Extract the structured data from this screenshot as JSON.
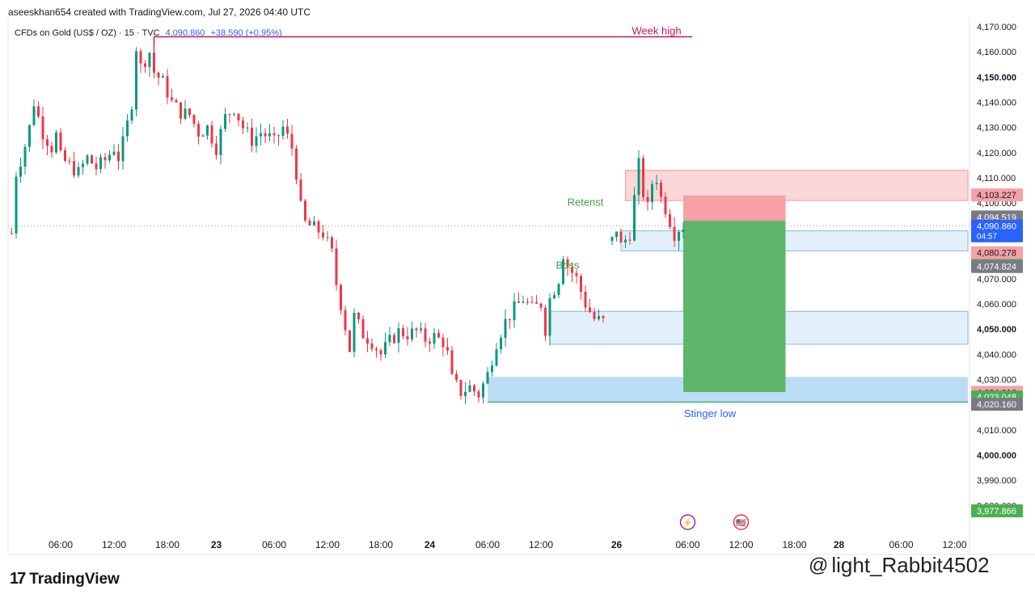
{
  "header": {
    "credit": "aseeskhan654 created with TradingView.com, Jul 27, 2026 04:40 UTC",
    "symbol": "CFDs on Gold (US$ / OZ) · 15 · TVC",
    "last_price": "4,090.860",
    "change": "+38.590 (+0.95%)"
  },
  "footer": {
    "logo_text": "TradingView",
    "watermark": "@light_Rabbit4502"
  },
  "colors": {
    "up": "#089981",
    "down": "#f23645",
    "week_high_line": "#c2185b",
    "red_zone_fill": "#fcd7da",
    "red_zone_border": "#f7a4aa",
    "blue_zone_fill": "#e3f0fb",
    "blue_zone_border": "#90c4ec",
    "support_fill": "#bbdcf5",
    "support_line": "#4caf85",
    "profit_fill": "#5fb66a",
    "stop_fill": "#f7a0a6",
    "retest_text": "#43a047",
    "stinger_text": "#2962ff"
  },
  "chart_data": {
    "type": "candlestick",
    "y_axis": {
      "min": 3973,
      "max": 4172,
      "ticks": [
        4170,
        4160,
        4150,
        4140,
        4130,
        4120,
        4110,
        4100,
        4090,
        4080,
        4070,
        4060,
        4050,
        4040,
        4030,
        4020,
        4010,
        4000,
        3990,
        3980
      ],
      "tick_labels": [
        "4,170.000",
        "4,160.000",
        "4,150.000",
        "4,140.000",
        "4,130.000",
        "4,120.000",
        "4,110.000",
        "4,100.000",
        "4,090.000",
        "4,080.000",
        "4,070.000",
        "4,060.000",
        "4,050.000",
        "4,040.000",
        "4,030.000",
        "4,020.000",
        "4,010.000",
        "4,000.000",
        "3,990.000",
        "3,980.000"
      ],
      "bold_ticks": [
        4150,
        4050,
        4000
      ]
    },
    "x_axis": {
      "labels": [
        {
          "text": "06:00",
          "t": 0.0,
          "bold": false
        },
        {
          "text": "12:00",
          "t": 6.0,
          "bold": false
        },
        {
          "text": "18:00",
          "t": 12.0,
          "bold": false
        },
        {
          "text": "23",
          "t": 17.5,
          "bold": true
        },
        {
          "text": "06:00",
          "t": 24.0,
          "bold": false
        },
        {
          "text": "12:00",
          "t": 30.0,
          "bold": false
        },
        {
          "text": "18:00",
          "t": 36.0,
          "bold": false
        },
        {
          "text": "24",
          "t": 41.5,
          "bold": true
        },
        {
          "text": "06:00",
          "t": 48.0,
          "bold": false
        },
        {
          "text": "12:00",
          "t": 54.0,
          "bold": false
        },
        {
          "text": "26",
          "t": 62.5,
          "bold": true
        },
        {
          "text": "06:00",
          "t": 70.5,
          "bold": false
        },
        {
          "text": "12:00",
          "t": 76.5,
          "bold": false
        },
        {
          "text": "18:00",
          "t": 82.5,
          "bold": false
        },
        {
          "text": "28",
          "t": 87.5,
          "bold": true
        },
        {
          "text": "06:00",
          "t": 94.5,
          "bold": false
        },
        {
          "text": "12:00",
          "t": 100.5,
          "bold": false
        }
      ]
    },
    "series": [
      {
        "name": "",
        "path": [
          [
            -5.5,
            4088
          ],
          [
            -5.0,
            4112
          ],
          [
            -4.2,
            4120
          ],
          [
            -3.5,
            4130
          ],
          [
            -3.0,
            4140
          ],
          [
            -2.0,
            4128
          ],
          [
            -1.0,
            4122
          ],
          [
            -0.5,
            4127
          ],
          [
            0.0,
            4118
          ],
          [
            1.0,
            4115
          ],
          [
            2.0,
            4112
          ],
          [
            3.0,
            4118
          ],
          [
            4.0,
            4114
          ],
          [
            5.0,
            4117
          ],
          [
            6.0,
            4122
          ],
          [
            6.5,
            4118
          ],
          [
            7.2,
            4126
          ],
          [
            8.0,
            4140
          ],
          [
            8.5,
            4162
          ],
          [
            9.0,
            4154
          ],
          [
            10.0,
            4160
          ],
          [
            10.5,
            4152
          ],
          [
            11.5,
            4148
          ],
          [
            12.5,
            4140
          ],
          [
            13.5,
            4136
          ],
          [
            14.5,
            4135
          ],
          [
            15.5,
            4128
          ],
          [
            16.5,
            4130
          ],
          [
            17.5,
            4122
          ],
          [
            18.5,
            4134
          ],
          [
            19.5,
            4138
          ],
          [
            20.5,
            4130
          ],
          [
            21.5,
            4125
          ],
          [
            22.5,
            4128
          ],
          [
            23.5,
            4126
          ],
          [
            24.0,
            4124
          ],
          [
            25.0,
            4130
          ],
          [
            26.0,
            4122
          ],
          [
            26.5,
            4112
          ],
          [
            27.0,
            4098
          ],
          [
            27.5,
            4092
          ],
          [
            28.5,
            4090
          ],
          [
            29.5,
            4088
          ],
          [
            30.5,
            4080
          ],
          [
            31.0,
            4068
          ],
          [
            31.5,
            4060
          ],
          [
            32.5,
            4042
          ],
          [
            33.0,
            4055
          ],
          [
            34.0,
            4048
          ],
          [
            35.0,
            4045
          ],
          [
            36.0,
            4040
          ],
          [
            37.0,
            4045
          ],
          [
            38.0,
            4049
          ],
          [
            39.0,
            4048
          ],
          [
            40.0,
            4049
          ],
          [
            41.0,
            4046
          ],
          [
            42.0,
            4047
          ],
          [
            43.0,
            4045
          ],
          [
            43.5,
            4040
          ],
          [
            44.0,
            4030
          ],
          [
            45.0,
            4025
          ],
          [
            46.0,
            4027
          ],
          [
            47.0,
            4024
          ],
          [
            48.0,
            4032
          ],
          [
            49.0,
            4045
          ],
          [
            50.0,
            4053
          ],
          [
            51.0,
            4058
          ],
          [
            52.0,
            4062
          ],
          [
            53.0,
            4058
          ],
          [
            54.0,
            4060
          ],
          [
            54.5,
            4050
          ],
          [
            55.0,
            4062
          ],
          [
            56.0,
            4070
          ],
          [
            56.5,
            4080
          ],
          [
            57.0,
            4075
          ],
          [
            58.0,
            4070
          ],
          [
            59.0,
            4060
          ],
          [
            60.0,
            4054
          ],
          [
            61.0,
            4053
          ]
        ],
        "bodies": true
      },
      {
        "name": "",
        "path": [
          [
            62.0,
            4085
          ],
          [
            62.5,
            4090
          ],
          [
            63.0,
            4083
          ],
          [
            64.0,
            4088
          ],
          [
            64.5,
            4102
          ],
          [
            65.0,
            4115
          ],
          [
            65.5,
            4104
          ],
          [
            66.0,
            4098
          ],
          [
            66.5,
            4108
          ],
          [
            67.0,
            4110
          ],
          [
            67.5,
            4102
          ],
          [
            68.0,
            4098
          ],
          [
            68.5,
            4093
          ],
          [
            69.0,
            4088
          ],
          [
            69.5,
            4090
          ],
          [
            70.0,
            4091
          ]
        ],
        "bodies": true
      }
    ],
    "levels": [
      {
        "name": "Week high",
        "value": 4166,
        "t0": 10.5,
        "t1": 71.0
      },
      {
        "name": "Stinger low",
        "value": 4021,
        "t0": 48.0,
        "t1": 106.0
      }
    ],
    "zones": [
      {
        "name": "red-supply-zone",
        "top": 4113,
        "bottom": 4101,
        "t0": 63.5,
        "t1": 106.0
      },
      {
        "name": "blue-retest-zone",
        "top": 4089,
        "bottom": 4081,
        "t0": 63.0,
        "t1": 106.0
      },
      {
        "name": "blue-demand-zone",
        "top": 4057,
        "bottom": 4044,
        "t0": 55.0,
        "t1": 106.0
      },
      {
        "name": "support-zone",
        "top": 4031,
        "bottom": 4021,
        "t0": 48.0,
        "t1": 106.0
      }
    ],
    "position": {
      "entry": 4093,
      "stop": 4103,
      "target": 4025,
      "t0": 70.0,
      "t1": 81.5
    },
    "annotations": [
      {
        "text": "Retenst",
        "value": 4099,
        "t": 59.0
      },
      {
        "text": "Boss",
        "value": 4074,
        "t": 57.0
      },
      {
        "text": "Week high",
        "value": 4167,
        "t": 67.0
      },
      {
        "text": "Stinger low",
        "value": 4015,
        "t": 73.0
      }
    ],
    "price_tags": [
      {
        "label": "4,103.227",
        "value": 4103.227,
        "bg": "#f7a0a6",
        "fg": "#131722",
        "extra": ""
      },
      {
        "label": "4,094.519",
        "value": 4094.519,
        "bg": "#787b86",
        "fg": "#ffffff",
        "extra": ""
      },
      {
        "label": "4,090.860",
        "value": 4090.86,
        "bg": "#2962ff",
        "fg": "#ffffff",
        "extra": "04:57"
      },
      {
        "label": "4,080.278",
        "value": 4080.278,
        "bg": "#f7a0a6",
        "fg": "#131722",
        "extra": ""
      },
      {
        "label": "4,075.217",
        "value": 4075.217,
        "bg": "#4caf50",
        "fg": "#ffffff",
        "extra": ""
      },
      {
        "label": "4,074.824",
        "value": 4074.824,
        "bg": "#787b86",
        "fg": "#ffffff",
        "extra": ""
      },
      {
        "label": "4,024.916",
        "value": 4024.916,
        "bg": "#f7a0a6",
        "fg": "#131722",
        "extra": ""
      },
      {
        "label": "4,023.048",
        "value": 4023.048,
        "bg": "#4caf50",
        "fg": "#ffffff",
        "extra": ""
      },
      {
        "label": "4,020.160",
        "value": 4020.16,
        "bg": "#787b86",
        "fg": "#ffffff",
        "extra": ""
      },
      {
        "label": "3,977.866",
        "value": 3977.866,
        "bg": "#4caf50",
        "fg": "#ffffff",
        "extra": ""
      }
    ],
    "last_price_line": 4090.86,
    "event_icons": [
      {
        "name": "flash-event-icon",
        "t": 70.5,
        "symbol": "⚡"
      },
      {
        "name": "us-flag-event-icon",
        "t": 76.5,
        "symbol": "🇺🇸"
      }
    ]
  }
}
